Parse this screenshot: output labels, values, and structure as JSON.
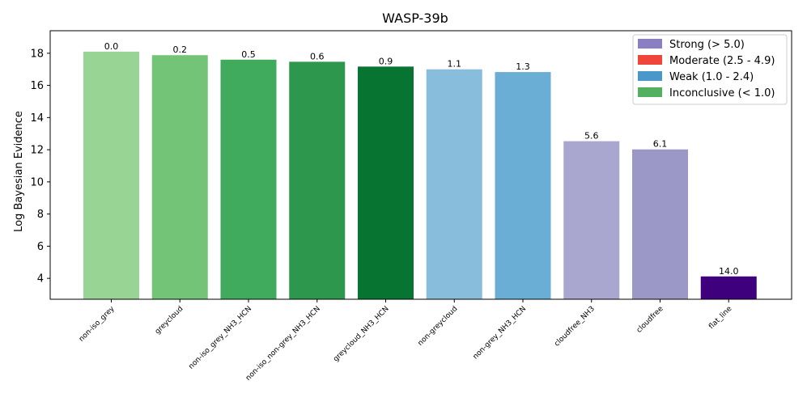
{
  "chart_data": {
    "type": "bar",
    "title": "WASP-39b",
    "xlabel": "",
    "ylabel": "Log Bayesian Evidence",
    "ylim": [
      2.7,
      19.4
    ],
    "yticks": [
      4,
      6,
      8,
      10,
      12,
      14,
      16,
      18
    ],
    "grid": false,
    "legend_position": "top-right",
    "categories": [
      "non-iso_grey",
      "greycloud",
      "non-iso_grey_NH3_HCN",
      "non-iso_non-grey_NH3_HCN",
      "greycloud_NH3_HCN",
      "non-greycloud",
      "non-grey_NH3_HCN",
      "cloudfree_NH3",
      "cloudfree",
      "flat_line"
    ],
    "values": [
      18.1,
      17.88,
      17.6,
      17.47,
      17.17,
      17.0,
      16.83,
      12.53,
      12.02,
      4.12
    ],
    "bar_labels": [
      "0.0",
      "0.2",
      "0.5",
      "0.6",
      "0.9",
      "1.1",
      "1.3",
      "5.6",
      "6.1",
      "14.0"
    ],
    "bar_colors": [
      "#98d594",
      "#73c476",
      "#41ab5d",
      "#2e974e",
      "#087432",
      "#88bedc",
      "#6aaed6",
      "#a9a6cf",
      "#9b97c6",
      "#3f007d"
    ],
    "legend": [
      {
        "label": "Strong (> 5.0)",
        "color": "#8a7fc0"
      },
      {
        "label": "Moderate (2.5 - 4.9)",
        "color": "#f0463a"
      },
      {
        "label": "Weak (1.0 - 2.4)",
        "color": "#4a98c9"
      },
      {
        "label": "Inconclusive (< 1.0)",
        "color": "#52b05f"
      }
    ]
  }
}
